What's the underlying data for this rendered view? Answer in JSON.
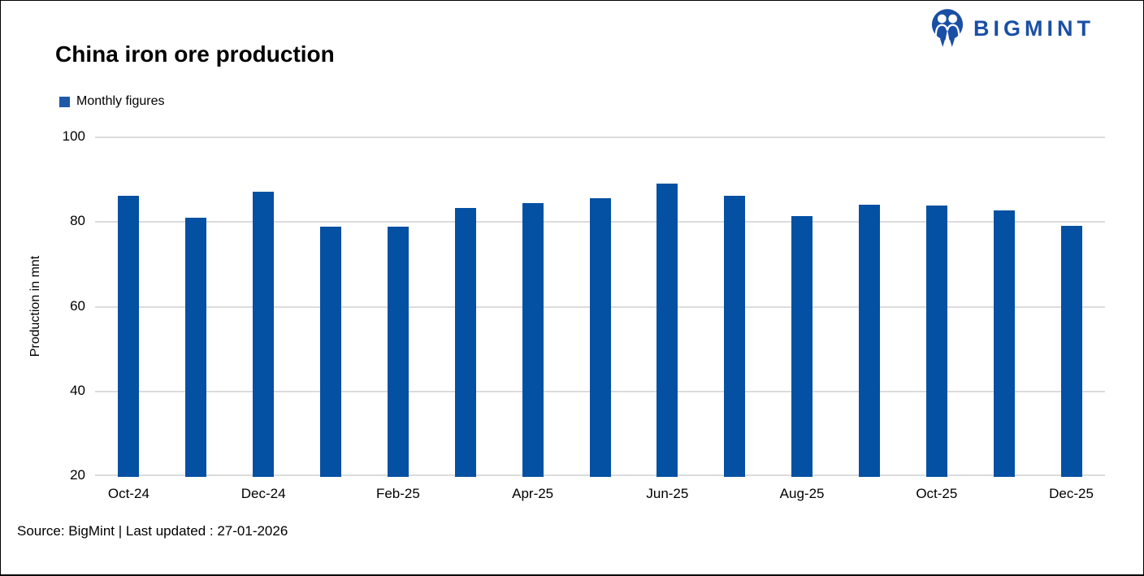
{
  "header": {
    "title": "China iron ore production",
    "logo_text": "BIGMINT"
  },
  "legend": {
    "label": "Monthly figures"
  },
  "footer": {
    "source_line": "Source: BigMint | Last updated : 27-01-2026"
  },
  "colors": {
    "bar": "#0450a2",
    "legend_swatch": "#1f5aa8",
    "logo_blue": "#1a4fa5",
    "gridline": "#dcdcdc"
  },
  "chart_data": {
    "type": "bar",
    "title": "China iron ore production",
    "xlabel": "",
    "ylabel": "Production in mnt",
    "ylim": [
      20,
      100
    ],
    "yticks": [
      20,
      40,
      60,
      80,
      100
    ],
    "grid": true,
    "legend_position": "top-left",
    "categories": [
      "Oct-24",
      "Nov-24",
      "Dec-24",
      "Jan-25",
      "Feb-25",
      "Mar-25",
      "Apr-25",
      "May-25",
      "Jun-25",
      "Jul-25",
      "Aug-25",
      "Sep-25",
      "Oct-25",
      "Nov-25",
      "Dec-25"
    ],
    "x_tick_labels_shown": [
      "Oct-24",
      "Dec-24",
      "Feb-25",
      "Apr-25",
      "Jun-25",
      "Aug-25",
      "Oct-25",
      "Dec-25"
    ],
    "series": [
      {
        "name": "Monthly figures",
        "values": [
          86.4,
          81.2,
          87.4,
          79.0,
          79.1,
          83.5,
          84.6,
          85.8,
          89.2,
          86.4,
          81.5,
          84.3,
          84.1,
          83.0,
          79.3
        ]
      }
    ]
  }
}
